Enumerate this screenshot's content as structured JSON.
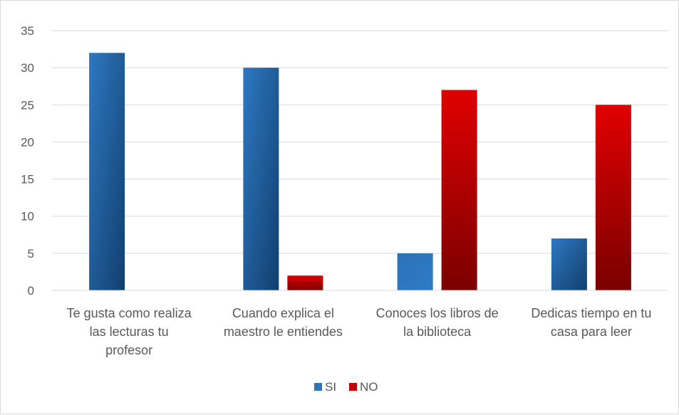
{
  "chart_data": {
    "type": "bar",
    "categories": [
      [
        "Te gusta como realiza",
        "las lecturas tu",
        "profesor"
      ],
      [
        "Cuando explica el",
        "maestro le entiendes"
      ],
      [
        "Conoces los libros de",
        "la biblioteca"
      ],
      [
        "Dedicas tiempo en tu",
        "casa para leer"
      ]
    ],
    "series": [
      {
        "name": "SI",
        "values": [
          32,
          30,
          5,
          7
        ],
        "color": "#2e75b6"
      },
      {
        "name": "NO",
        "values": [
          0,
          2,
          27,
          25
        ],
        "color": "#c00000"
      }
    ],
    "ylim": [
      0,
      35
    ],
    "yticks": [
      0,
      5,
      10,
      15,
      20,
      25,
      30,
      35
    ],
    "grid": true,
    "legend_position": "bottom"
  }
}
